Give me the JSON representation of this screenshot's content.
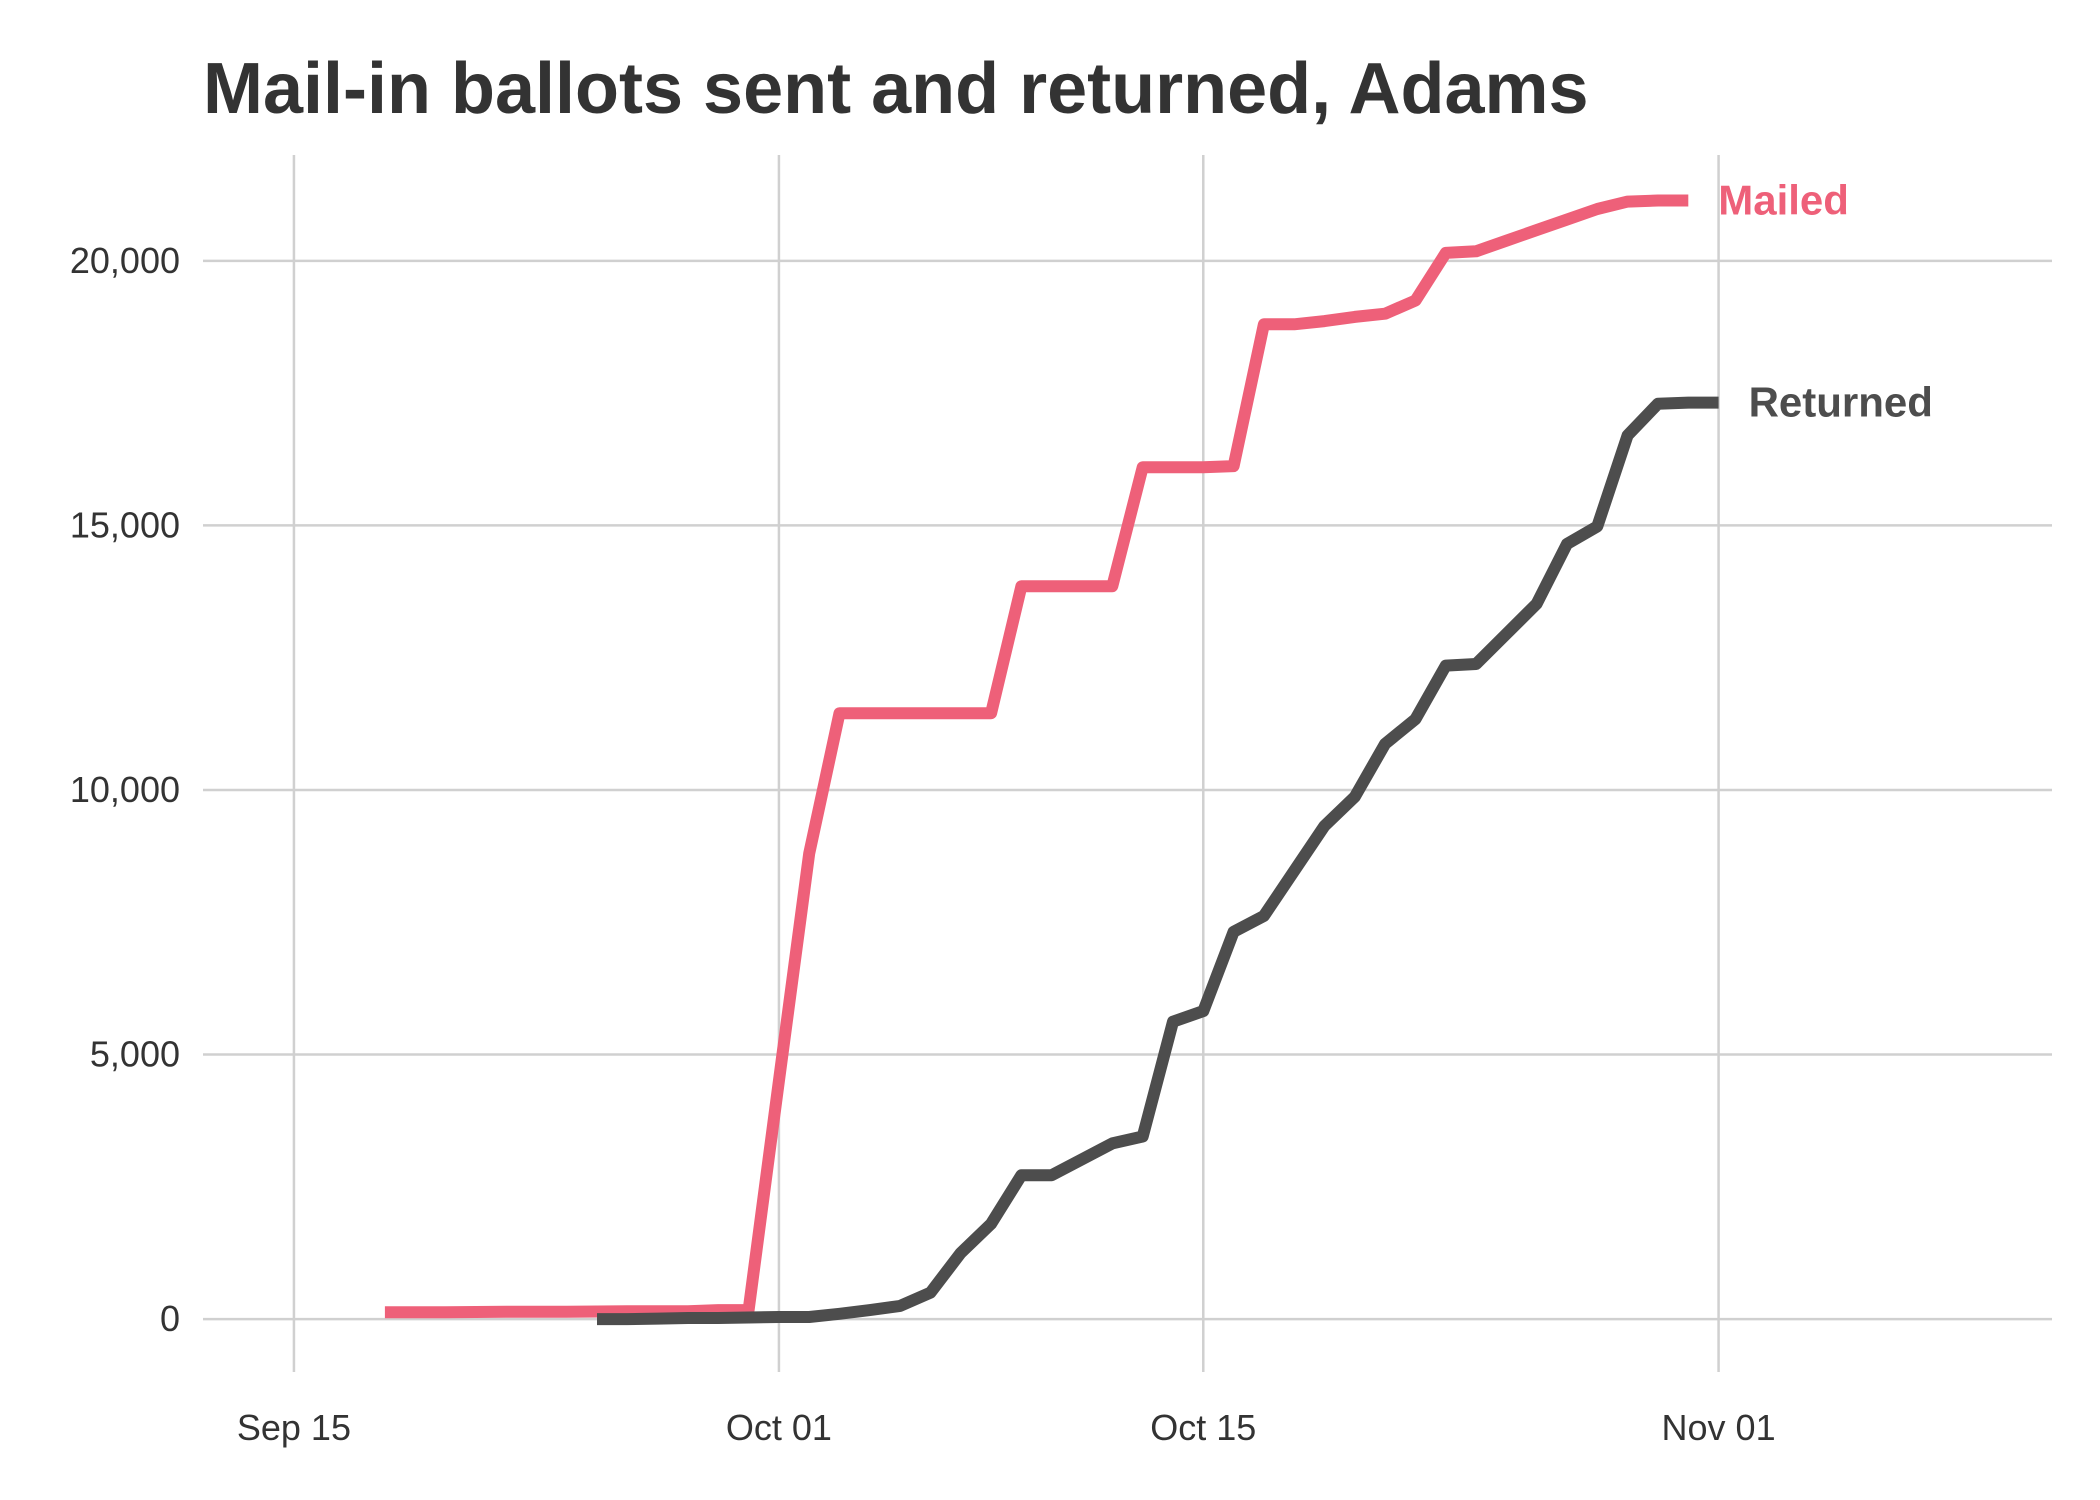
{
  "chart_data": {
    "type": "line",
    "title": "Mail-in ballots sent and returned, Adams",
    "xlabel": "",
    "ylabel": "",
    "x_type": "date",
    "xlim": [
      "2020-09-12",
      "2020-11-12"
    ],
    "ylim": [
      -1000,
      22000
    ],
    "x_ticks": [
      {
        "date": "2020-09-15",
        "label": "Sep 15"
      },
      {
        "date": "2020-10-01",
        "label": "Oct 01"
      },
      {
        "date": "2020-10-15",
        "label": "Oct 15"
      },
      {
        "date": "2020-11-01",
        "label": "Nov 01"
      }
    ],
    "y_ticks": [
      {
        "value": 0,
        "label": "0"
      },
      {
        "value": 5000,
        "label": "5,000"
      },
      {
        "value": 10000,
        "label": "10,000"
      },
      {
        "value": 15000,
        "label": "15,000"
      },
      {
        "value": 20000,
        "label": "20,000"
      }
    ],
    "grid": true,
    "legend": "direct labels at line ends",
    "series": [
      {
        "name": "Mailed",
        "color": "#EE6079",
        "points": [
          [
            "2020-09-18",
            130
          ],
          [
            "2020-09-20",
            130
          ],
          [
            "2020-09-22",
            140
          ],
          [
            "2020-09-24",
            140
          ],
          [
            "2020-09-26",
            150
          ],
          [
            "2020-09-28",
            150
          ],
          [
            "2020-09-29",
            170
          ],
          [
            "2020-09-30",
            170
          ],
          [
            "2020-10-01",
            4500
          ],
          [
            "2020-10-02",
            8800
          ],
          [
            "2020-10-03",
            11450
          ],
          [
            "2020-10-04",
            11450
          ],
          [
            "2020-10-05",
            11450
          ],
          [
            "2020-10-06",
            11450
          ],
          [
            "2020-10-07",
            11450
          ],
          [
            "2020-10-08",
            11450
          ],
          [
            "2020-10-09",
            13850
          ],
          [
            "2020-10-10",
            13850
          ],
          [
            "2020-10-11",
            13850
          ],
          [
            "2020-10-12",
            13850
          ],
          [
            "2020-10-13",
            16100
          ],
          [
            "2020-10-14",
            16100
          ],
          [
            "2020-10-15",
            16100
          ],
          [
            "2020-10-16",
            16120
          ],
          [
            "2020-10-17",
            18800
          ],
          [
            "2020-10-18",
            18800
          ],
          [
            "2020-10-19",
            18860
          ],
          [
            "2020-10-20",
            18940
          ],
          [
            "2020-10-21",
            19000
          ],
          [
            "2020-10-22",
            19250
          ],
          [
            "2020-10-23",
            20150
          ],
          [
            "2020-10-24",
            20180
          ],
          [
            "2020-10-25",
            20380
          ],
          [
            "2020-10-26",
            20580
          ],
          [
            "2020-10-27",
            20780
          ],
          [
            "2020-10-28",
            20980
          ],
          [
            "2020-10-29",
            21120
          ],
          [
            "2020-10-30",
            21140
          ],
          [
            "2020-10-31",
            21140
          ]
        ]
      },
      {
        "name": "Returned",
        "color": "#4D4D4D",
        "points": [
          [
            "2020-09-25",
            0
          ],
          [
            "2020-09-26",
            0
          ],
          [
            "2020-09-27",
            10
          ],
          [
            "2020-09-28",
            20
          ],
          [
            "2020-09-29",
            20
          ],
          [
            "2020-09-30",
            30
          ],
          [
            "2020-10-01",
            40
          ],
          [
            "2020-10-02",
            40
          ],
          [
            "2020-10-03",
            100
          ],
          [
            "2020-10-04",
            170
          ],
          [
            "2020-10-05",
            250
          ],
          [
            "2020-10-06",
            500
          ],
          [
            "2020-10-07",
            1250
          ],
          [
            "2020-10-08",
            1800
          ],
          [
            "2020-10-09",
            2720
          ],
          [
            "2020-10-10",
            2720
          ],
          [
            "2020-10-11",
            3020
          ],
          [
            "2020-10-12",
            3320
          ],
          [
            "2020-10-13",
            3450
          ],
          [
            "2020-10-14",
            5620
          ],
          [
            "2020-10-15",
            5820
          ],
          [
            "2020-10-16",
            7320
          ],
          [
            "2020-10-17",
            7620
          ],
          [
            "2020-10-18",
            8470
          ],
          [
            "2020-10-19",
            9320
          ],
          [
            "2020-10-20",
            9870
          ],
          [
            "2020-10-21",
            10870
          ],
          [
            "2020-10-22",
            11340
          ],
          [
            "2020-10-23",
            12350
          ],
          [
            "2020-10-24",
            12380
          ],
          [
            "2020-10-25",
            12950
          ],
          [
            "2020-10-26",
            13520
          ],
          [
            "2020-10-27",
            14650
          ],
          [
            "2020-10-28",
            14980
          ],
          [
            "2020-10-29",
            16700
          ],
          [
            "2020-10-30",
            17300
          ],
          [
            "2020-10-31",
            17320
          ],
          [
            "2020-11-01",
            17320
          ]
        ]
      }
    ]
  }
}
